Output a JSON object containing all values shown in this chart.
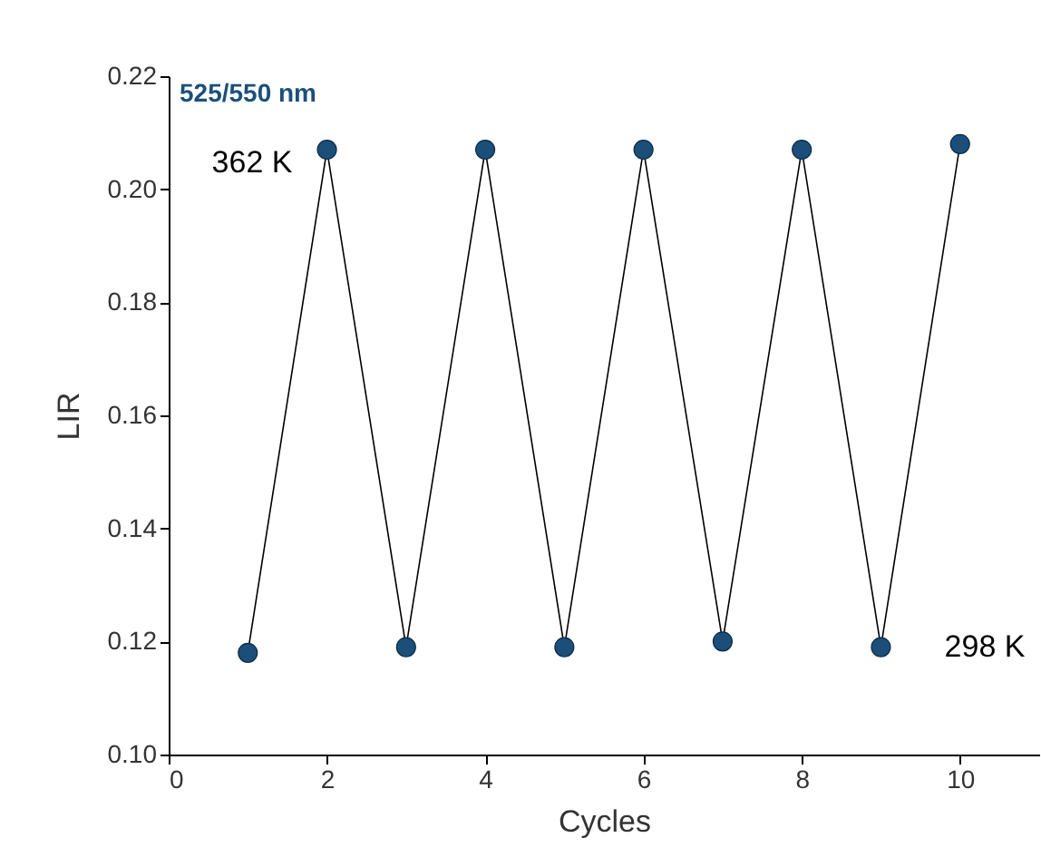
{
  "chart_data": {
    "type": "line",
    "xlabel": "Cycles",
    "ylabel": "LIR",
    "x": [
      1,
      2,
      3,
      4,
      5,
      6,
      7,
      8,
      9,
      10
    ],
    "series": [
      {
        "color": "#1b4f7a",
        "values": [
          0.118,
          0.207,
          0.119,
          0.207,
          0.119,
          0.207,
          0.12,
          0.207,
          0.119,
          0.208
        ],
        "errors": [
          0.001,
          0.001,
          0.001,
          0.001,
          0.001,
          0.001,
          0.001,
          0.001,
          0.001,
          0.001
        ]
      }
    ],
    "xlim": [
      0,
      11
    ],
    "xticks": [
      0,
      2,
      4,
      6,
      8,
      10
    ],
    "ylim": [
      0.1,
      0.22
    ],
    "yticks": [
      {
        "value": 0.1,
        "label": "0.10"
      },
      0.12,
      0.14,
      0.16,
      0.18,
      {
        "value": 0.2,
        "label": "0.20"
      },
      0.22
    ],
    "marker": "circle",
    "line_style": "solid",
    "annotations": [
      "525/550 nm",
      "362 K",
      "298 K"
    ]
  }
}
